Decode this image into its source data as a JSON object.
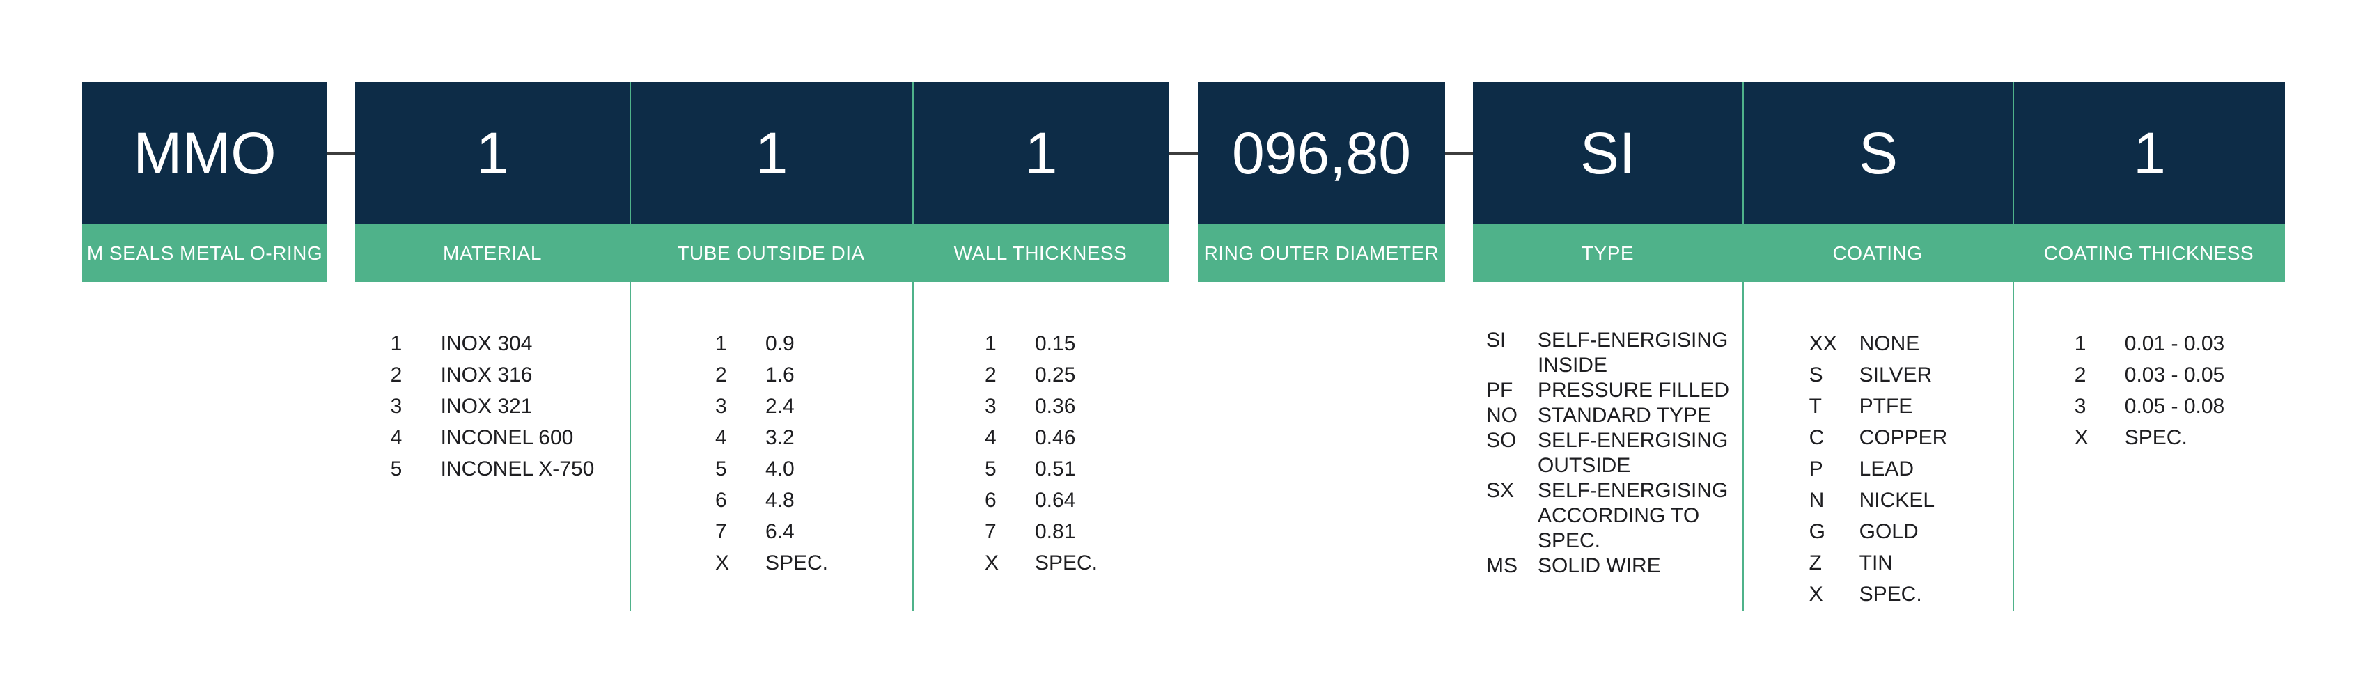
{
  "colors": {
    "navy": "#0d2c47",
    "green": "#4fb28a",
    "connector": "#3d3d3d",
    "list-text": "#1e1e21",
    "white": "#ffffff",
    "bg": "#ffffff"
  },
  "segments": {
    "mmo": {
      "code": "MMO",
      "label": "M SEALS METAL O-RING"
    },
    "material": {
      "code": "1",
      "label": "MATERIAL",
      "options": [
        {
          "code": "1",
          "desc": "INOX 304"
        },
        {
          "code": "2",
          "desc": "INOX 316"
        },
        {
          "code": "3",
          "desc": "INOX 321"
        },
        {
          "code": "4",
          "desc": "INCONEL 600"
        },
        {
          "code": "5",
          "desc": "INCONEL X-750"
        }
      ]
    },
    "tube": {
      "code": "1",
      "label": "TUBE OUTSIDE DIA",
      "options": [
        {
          "code": "1",
          "desc": "0.9"
        },
        {
          "code": "2",
          "desc": "1.6"
        },
        {
          "code": "3",
          "desc": "2.4"
        },
        {
          "code": "4",
          "desc": "3.2"
        },
        {
          "code": "5",
          "desc": "4.0"
        },
        {
          "code": "6",
          "desc": "4.8"
        },
        {
          "code": "7",
          "desc": "6.4"
        },
        {
          "code": "X",
          "desc": "SPEC."
        }
      ]
    },
    "wall": {
      "code": "1",
      "label": "WALL THICKNESS",
      "options": [
        {
          "code": "1",
          "desc": "0.15"
        },
        {
          "code": "2",
          "desc": "0.25"
        },
        {
          "code": "3",
          "desc": "0.36"
        },
        {
          "code": "4",
          "desc": "0.46"
        },
        {
          "code": "5",
          "desc": "0.51"
        },
        {
          "code": "6",
          "desc": "0.64"
        },
        {
          "code": "7",
          "desc": "0.81"
        },
        {
          "code": "X",
          "desc": "SPEC."
        }
      ]
    },
    "ring": {
      "code": "096,80",
      "label": "RING OUTER DIAMETER"
    },
    "type": {
      "code": "SI",
      "label": "TYPE",
      "options": [
        {
          "code": "SI",
          "desc": "SELF-ENERGISING\nINSIDE"
        },
        {
          "code": "PF",
          "desc": "PRESSURE FILLED"
        },
        {
          "code": "NO",
          "desc": "STANDARD TYPE"
        },
        {
          "code": "SO",
          "desc": "SELF-ENERGISING\nOUTSIDE"
        },
        {
          "code": "SX",
          "desc": "SELF-ENERGISING\nACCORDING TO\nSPEC."
        },
        {
          "code": "MS",
          "desc": "SOLID WIRE"
        }
      ]
    },
    "coating": {
      "code": "S",
      "label": "COATING",
      "options": [
        {
          "code": "XX",
          "desc": "NONE"
        },
        {
          "code": "S",
          "desc": "SILVER"
        },
        {
          "code": "T",
          "desc": "PTFE"
        },
        {
          "code": "C",
          "desc": "COPPER"
        },
        {
          "code": "P",
          "desc": "LEAD"
        },
        {
          "code": "N",
          "desc": "NICKEL"
        },
        {
          "code": "G",
          "desc": "GOLD"
        },
        {
          "code": "Z",
          "desc": "TIN"
        },
        {
          "code": "X",
          "desc": "SPEC."
        }
      ]
    },
    "coating_thickness": {
      "code": "1",
      "label": "COATING THICKNESS",
      "options": [
        {
          "code": "1",
          "desc": "0.01 - 0.03"
        },
        {
          "code": "2",
          "desc": "0.03 - 0.05"
        },
        {
          "code": "3",
          "desc": "0.05 - 0.08"
        },
        {
          "code": "X",
          "desc": "SPEC."
        }
      ]
    }
  }
}
